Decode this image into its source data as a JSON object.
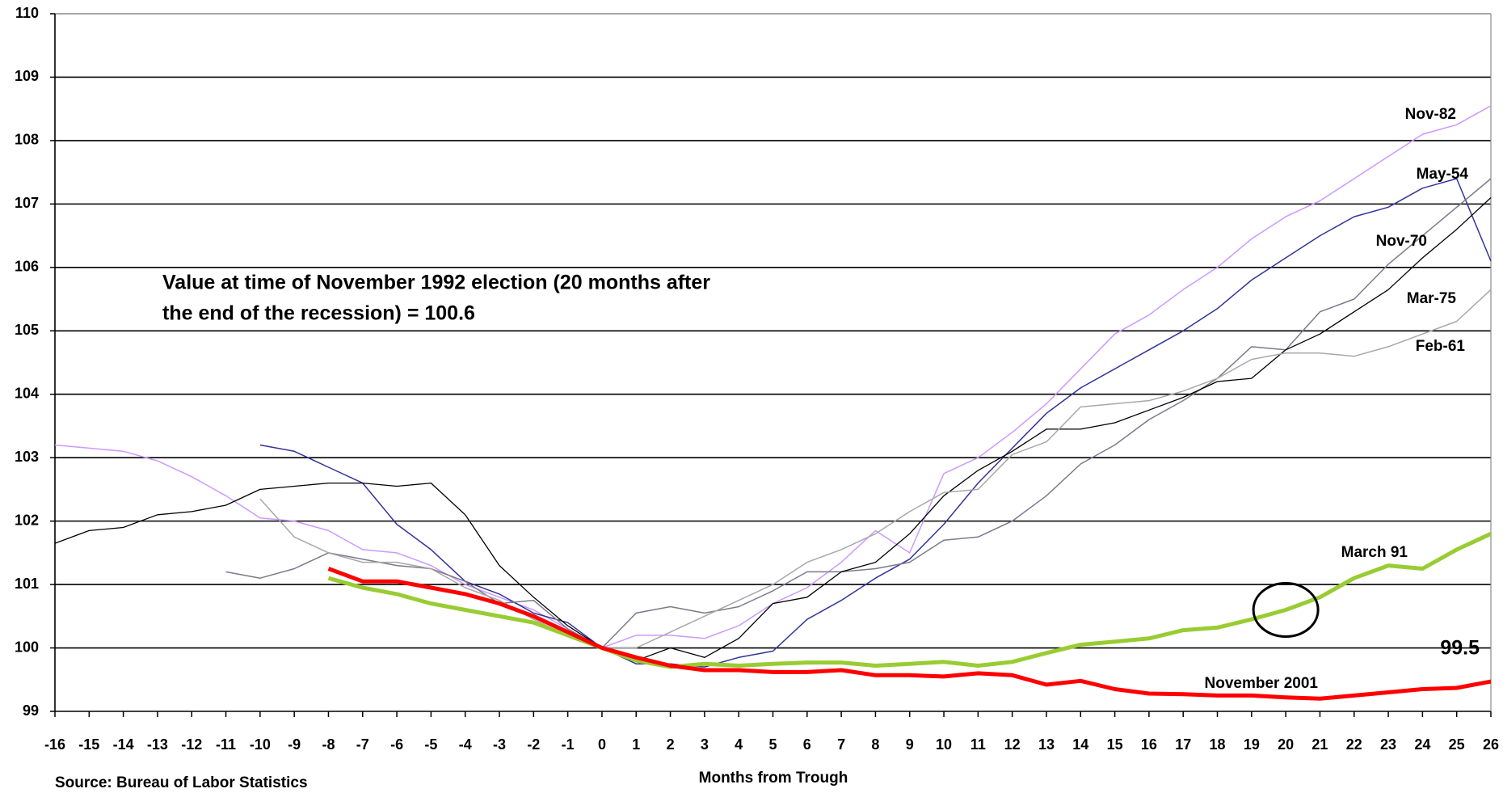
{
  "chart_data": {
    "type": "line",
    "x_label": "Months from Trough",
    "source": "Source: Bureau of Labor Statistics",
    "annotation": [
      "Value at time of November 1992 election (20 months after",
      "the end of the recession) = 100.6"
    ],
    "highlight": {
      "x": 20,
      "y": 100.6
    },
    "x": [
      -16,
      -15,
      -14,
      -13,
      -12,
      -11,
      -10,
      -9,
      -8,
      -7,
      -6,
      -5,
      -4,
      -3,
      -2,
      -1,
      0,
      1,
      2,
      3,
      4,
      5,
      6,
      7,
      8,
      9,
      10,
      11,
      12,
      13,
      14,
      15,
      16,
      17,
      18,
      19,
      20,
      21,
      22,
      23,
      24,
      25,
      26
    ],
    "xlim": [
      -16,
      26
    ],
    "xticks": [
      -16,
      -15,
      -14,
      -13,
      -12,
      -11,
      -10,
      -9,
      -8,
      -7,
      -6,
      -5,
      -4,
      -3,
      -2,
      -1,
      0,
      1,
      2,
      3,
      4,
      5,
      6,
      7,
      8,
      9,
      10,
      11,
      12,
      13,
      14,
      15,
      16,
      17,
      18,
      19,
      20,
      21,
      22,
      23,
      24,
      25,
      26
    ],
    "ylim": [
      99,
      110
    ],
    "yticks": [
      99,
      100,
      101,
      102,
      103,
      104,
      105,
      106,
      107,
      108,
      109,
      110
    ],
    "grid": true,
    "series": [
      {
        "name": "Nov-82",
        "color": "#cc99ff",
        "width": 1.5,
        "values": [
          103.2,
          103.15,
          103.1,
          102.95,
          102.7,
          102.4,
          102.05,
          102.0,
          101.85,
          101.55,
          101.5,
          101.3,
          101.0,
          100.8,
          100.6,
          100.3,
          100.0,
          100.2,
          100.2,
          100.15,
          100.35,
          100.7,
          100.95,
          101.35,
          101.85,
          101.5,
          102.75,
          103.0,
          103.4,
          103.85,
          104.4,
          104.95,
          105.25,
          105.65,
          106.0,
          106.45,
          106.8,
          107.05,
          107.4,
          107.75,
          108.1,
          108.25,
          108.55
        ]
      },
      {
        "name": "May-54",
        "color": "#333399",
        "width": 1.5,
        "values": [
          null,
          null,
          null,
          null,
          null,
          null,
          103.2,
          103.1,
          102.85,
          102.6,
          101.95,
          101.55,
          101.05,
          100.85,
          100.55,
          100.4,
          100.0,
          99.75,
          99.75,
          99.7,
          99.85,
          99.95,
          100.45,
          100.75,
          101.1,
          101.4,
          101.95,
          102.6,
          103.15,
          103.7,
          104.1,
          104.4,
          104.7,
          105.0,
          105.35,
          105.8,
          106.15,
          106.5,
          106.8,
          106.95,
          107.25,
          107.4,
          106.1
        ]
      },
      {
        "name": "Nov-70",
        "color": "#7a7a8c",
        "width": 1.5,
        "values": [
          null,
          null,
          null,
          null,
          null,
          101.2,
          101.1,
          101.25,
          101.5,
          101.4,
          101.3,
          101.25,
          101.05,
          100.7,
          100.75,
          100.3,
          100.0,
          100.55,
          100.65,
          100.55,
          100.65,
          100.9,
          101.2,
          101.2,
          101.25,
          101.35,
          101.7,
          101.75,
          102.0,
          102.4,
          102.9,
          103.2,
          103.6,
          103.9,
          104.25,
          104.75,
          104.7,
          105.3,
          105.5,
          106.05,
          106.5,
          106.95,
          107.4
        ]
      },
      {
        "name": "Mar-75",
        "color": "#000000",
        "width": 1.3,
        "values": [
          101.65,
          101.85,
          101.9,
          102.1,
          102.15,
          102.25,
          102.5,
          102.55,
          102.6,
          102.6,
          102.55,
          102.6,
          102.1,
          101.3,
          100.8,
          100.35,
          100.0,
          99.8,
          100.0,
          99.85,
          100.15,
          100.7,
          100.8,
          101.2,
          101.35,
          101.8,
          102.4,
          102.8,
          103.1,
          103.45,
          103.45,
          103.55,
          103.75,
          103.95,
          104.2,
          104.25,
          104.7,
          104.95,
          105.3,
          105.65,
          106.15,
          106.6,
          107.1
        ]
      },
      {
        "name": "Feb-61",
        "color": "#a8a8a8",
        "width": 1.5,
        "values": [
          null,
          null,
          null,
          null,
          null,
          null,
          102.35,
          101.75,
          101.5,
          101.35,
          101.35,
          101.25,
          100.95,
          100.75,
          100.45,
          100.2,
          100.0,
          100.0,
          100.25,
          100.5,
          100.75,
          101.0,
          101.35,
          101.55,
          101.8,
          102.15,
          102.45,
          102.5,
          103.05,
          103.25,
          103.8,
          103.85,
          103.9,
          104.05,
          104.25,
          104.55,
          104.65,
          104.65,
          104.6,
          104.75,
          104.95,
          105.15,
          105.65
        ]
      },
      {
        "name": "March 91",
        "color": "#99cc33",
        "width": 5,
        "values": [
          null,
          null,
          null,
          null,
          null,
          null,
          null,
          null,
          101.1,
          100.95,
          100.85,
          100.7,
          100.6,
          100.5,
          100.4,
          100.2,
          100.0,
          99.8,
          99.7,
          99.75,
          99.72,
          99.75,
          99.77,
          99.77,
          99.72,
          99.75,
          99.78,
          99.72,
          99.78,
          99.92,
          100.05,
          100.1,
          100.15,
          100.28,
          100.32,
          100.45,
          100.6,
          100.8,
          101.1,
          101.3,
          101.25,
          101.55,
          101.8
        ]
      },
      {
        "name": "November 2001",
        "color": "#ff0000",
        "width": 5,
        "values": [
          null,
          null,
          null,
          null,
          null,
          null,
          null,
          null,
          101.25,
          101.05,
          101.05,
          100.95,
          100.85,
          100.7,
          100.5,
          100.25,
          100.0,
          99.85,
          99.72,
          99.65,
          99.65,
          99.62,
          99.62,
          99.65,
          99.57,
          99.57,
          99.55,
          99.6,
          99.57,
          99.42,
          99.48,
          99.35,
          99.28,
          99.27,
          99.25,
          99.25,
          99.22,
          99.2,
          99.25,
          99.3,
          99.35,
          99.37,
          99.47
        ],
        "value_labels": [
          null,
          null,
          null,
          null,
          null,
          null,
          null,
          null,
          null,
          null,
          null,
          null,
          null,
          null,
          null,
          null,
          null,
          null,
          null,
          null,
          null,
          null,
          null,
          null,
          null,
          null,
          null,
          null,
          null,
          null,
          null,
          null,
          null,
          null,
          null,
          null,
          null,
          null,
          null,
          null,
          null,
          null,
          "99.5"
        ]
      }
    ]
  }
}
